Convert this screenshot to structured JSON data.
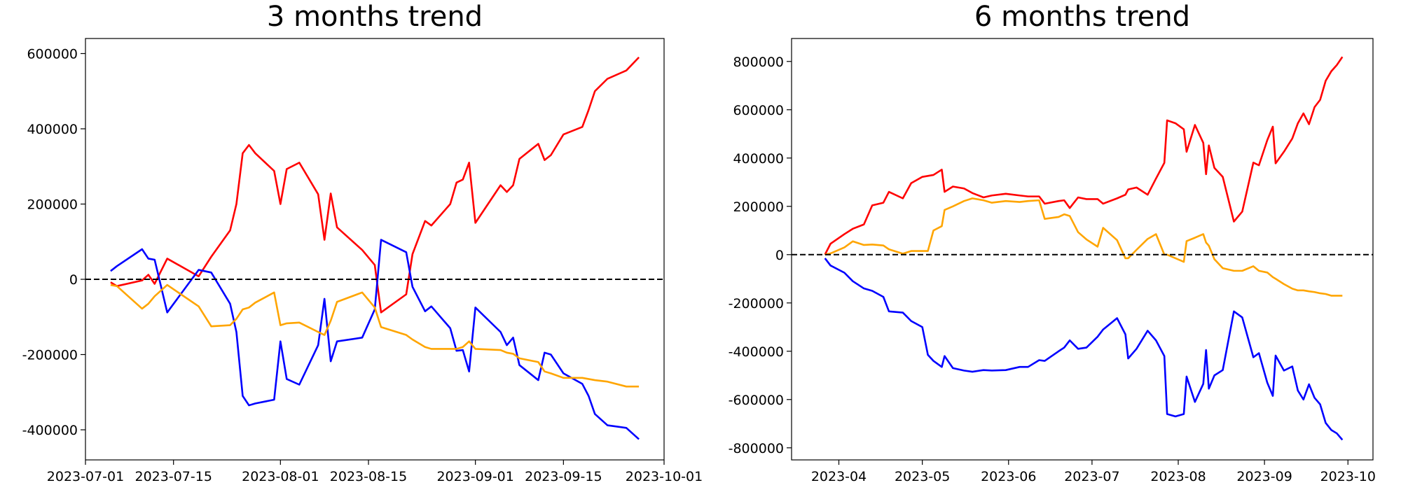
{
  "chart_data": [
    {
      "type": "line",
      "title": "3 months trend",
      "x": [
        "2023-07-05",
        "2023-07-06",
        "2023-07-10",
        "2023-07-11",
        "2023-07-12",
        "2023-07-14",
        "2023-07-19",
        "2023-07-21",
        "2023-07-24",
        "2023-07-25",
        "2023-07-26",
        "2023-07-27",
        "2023-07-28",
        "2023-07-31",
        "2023-08-01",
        "2023-08-02",
        "2023-08-04",
        "2023-08-07",
        "2023-08-08",
        "2023-08-09",
        "2023-08-10",
        "2023-08-14",
        "2023-08-16",
        "2023-08-17",
        "2023-08-21",
        "2023-08-22",
        "2023-08-24",
        "2023-08-25",
        "2023-08-28",
        "2023-08-29",
        "2023-08-30",
        "2023-08-31",
        "2023-09-01",
        "2023-09-05",
        "2023-09-06",
        "2023-09-07",
        "2023-09-08",
        "2023-09-11",
        "2023-09-12",
        "2023-09-13",
        "2023-09-15",
        "2023-09-18",
        "2023-09-19",
        "2023-09-20",
        "2023-09-22",
        "2023-09-25",
        "2023-09-27"
      ],
      "series": [
        {
          "color": "#ff0000",
          "values": [
            -8000,
            -18000,
            -3000,
            12000,
            -12000,
            55000,
            8000,
            60000,
            130000,
            200000,
            335000,
            357000,
            335000,
            288000,
            200000,
            293000,
            310000,
            226000,
            105000,
            228000,
            138000,
            78000,
            38000,
            -88000,
            -40000,
            67000,
            155000,
            143000,
            200000,
            257000,
            265000,
            310000,
            150000,
            250000,
            232000,
            250000,
            320000,
            360000,
            317000,
            330000,
            385000,
            405000,
            450000,
            500000,
            533000,
            555000,
            590000
          ]
        },
        {
          "color": "#0000ff",
          "values": [
            22000,
            35000,
            80000,
            55000,
            52000,
            -88000,
            25000,
            18000,
            -65000,
            -140000,
            -310000,
            -335000,
            -330000,
            -320000,
            -165000,
            -265000,
            -280000,
            -175000,
            -52000,
            -218000,
            -165000,
            -155000,
            -80000,
            105000,
            72000,
            -20000,
            -85000,
            -72000,
            -130000,
            -190000,
            -188000,
            -245000,
            -75000,
            -140000,
            -175000,
            -155000,
            -228000,
            -268000,
            -195000,
            -200000,
            -250000,
            -278000,
            -310000,
            -358000,
            -388000,
            -395000,
            -425000
          ]
        },
        {
          "color": "#ffa500",
          "values": [
            -15000,
            -18000,
            -78000,
            -65000,
            -45000,
            -15000,
            -72000,
            -125000,
            -122000,
            -105000,
            -80000,
            -75000,
            -62000,
            -35000,
            -122000,
            -117000,
            -115000,
            -140000,
            -148000,
            -110000,
            -60000,
            -35000,
            -75000,
            -127000,
            -148000,
            -160000,
            -180000,
            -185000,
            -185000,
            -185000,
            -180000,
            -165000,
            -185000,
            -188000,
            -195000,
            -198000,
            -210000,
            -220000,
            -245000,
            -250000,
            -262000,
            -262000,
            -265000,
            -268000,
            -272000,
            -285000,
            -285000
          ]
        }
      ],
      "xlim": [
        "2023-07-01",
        "2023-10-01"
      ],
      "xticks": [
        "2023-07-01",
        "2023-07-15",
        "2023-08-01",
        "2023-08-15",
        "2023-09-01",
        "2023-09-15",
        "2023-10-01"
      ],
      "ylim": [
        -480000,
        640000
      ],
      "yticks": [
        -400000,
        -200000,
        0,
        200000,
        400000,
        600000
      ],
      "hline": 0
    },
    {
      "type": "line",
      "title": "6 months trend",
      "x": [
        "2023-03-27",
        "2023-03-29",
        "2023-04-03",
        "2023-04-06",
        "2023-04-10",
        "2023-04-13",
        "2023-04-17",
        "2023-04-19",
        "2023-04-24",
        "2023-04-27",
        "2023-05-01",
        "2023-05-03",
        "2023-05-05",
        "2023-05-08",
        "2023-05-09",
        "2023-05-12",
        "2023-05-16",
        "2023-05-19",
        "2023-05-23",
        "2023-05-26",
        "2023-05-31",
        "2023-06-05",
        "2023-06-08",
        "2023-06-12",
        "2023-06-14",
        "2023-06-19",
        "2023-06-21",
        "2023-06-23",
        "2023-06-26",
        "2023-06-29",
        "2023-07-03",
        "2023-07-05",
        "2023-07-10",
        "2023-07-13",
        "2023-07-14",
        "2023-07-17",
        "2023-07-21",
        "2023-07-24",
        "2023-07-27",
        "2023-07-28",
        "2023-07-31",
        "2023-08-03",
        "2023-08-04",
        "2023-08-07",
        "2023-08-10",
        "2023-08-11",
        "2023-08-12",
        "2023-08-14",
        "2023-08-17",
        "2023-08-21",
        "2023-08-24",
        "2023-08-28",
        "2023-08-30",
        "2023-09-02",
        "2023-09-04",
        "2023-09-05",
        "2023-09-08",
        "2023-09-11",
        "2023-09-13",
        "2023-09-15",
        "2023-09-17",
        "2023-09-19",
        "2023-09-21",
        "2023-09-23",
        "2023-09-25",
        "2023-09-27",
        "2023-09-29"
      ],
      "series": [
        {
          "color": "#ff0000",
          "values": [
            0,
            45000,
            85000,
            107000,
            125000,
            204000,
            215000,
            260000,
            233000,
            296000,
            322000,
            326000,
            330000,
            352000,
            260000,
            282000,
            274000,
            255000,
            237000,
            245000,
            252000,
            245000,
            241000,
            241000,
            211000,
            222000,
            225000,
            193000,
            237000,
            230000,
            230000,
            211000,
            233000,
            248000,
            270000,
            278000,
            248000,
            315000,
            380000,
            556000,
            544000,
            519000,
            426000,
            537000,
            463000,
            333000,
            452000,
            359000,
            322000,
            137000,
            178000,
            381000,
            370000,
            474000,
            530000,
            378000,
            426000,
            481000,
            544000,
            585000,
            540000,
            611000,
            641000,
            720000,
            759000,
            785000,
            819000
          ]
        },
        {
          "color": "#0000ff",
          "values": [
            -15000,
            -45000,
            -75000,
            -110000,
            -140000,
            -150000,
            -175000,
            -235000,
            -240000,
            -275000,
            -300000,
            -415000,
            -440000,
            -465000,
            -420000,
            -470000,
            -480000,
            -485000,
            -478000,
            -480000,
            -478000,
            -465000,
            -465000,
            -437000,
            -440000,
            -400000,
            -385000,
            -355000,
            -390000,
            -385000,
            -340000,
            -310000,
            -263000,
            -330000,
            -430000,
            -390000,
            -315000,
            -355000,
            -420000,
            -660000,
            -670000,
            -660000,
            -505000,
            -610000,
            -535000,
            -395000,
            -555000,
            -500000,
            -478000,
            -235000,
            -260000,
            -425000,
            -408000,
            -530000,
            -585000,
            -418000,
            -480000,
            -463000,
            -563000,
            -600000,
            -537000,
            -593000,
            -620000,
            -697000,
            -726000,
            -740000,
            -767000
          ]
        },
        {
          "color": "#ffa500",
          "values": [
            0,
            5000,
            30000,
            55000,
            40000,
            42000,
            38000,
            22000,
            4000,
            15000,
            15000,
            15000,
            100000,
            118000,
            185000,
            200000,
            222000,
            233000,
            225000,
            215000,
            222000,
            218000,
            222000,
            225000,
            148000,
            156000,
            167000,
            160000,
            93000,
            63000,
            33000,
            111000,
            60000,
            -15000,
            -15000,
            20000,
            65000,
            85000,
            0,
            0,
            -15000,
            -30000,
            56000,
            70000,
            85000,
            50000,
            37000,
            -19000,
            -56000,
            -67000,
            -67000,
            -48000,
            -67000,
            -74000,
            -93000,
            -100000,
            -122000,
            -141000,
            -148000,
            -148000,
            -152000,
            -155000,
            -160000,
            -163000,
            -170000,
            -170000,
            -170000
          ]
        }
      ],
      "xlim": [
        "2023-03-15",
        "2023-10-10"
      ],
      "xticks": [
        {
          "value": "2023-04-01",
          "label": "2023-04"
        },
        {
          "value": "2023-05-01",
          "label": "2023-05"
        },
        {
          "value": "2023-06-01",
          "label": "2023-06"
        },
        {
          "value": "2023-07-01",
          "label": "2023-07"
        },
        {
          "value": "2023-08-01",
          "label": "2023-08"
        },
        {
          "value": "2023-09-01",
          "label": "2023-09"
        },
        {
          "value": "2023-10-01",
          "label": "2023-10"
        }
      ],
      "ylim": [
        -850000,
        895000
      ],
      "yticks": [
        -800000,
        -600000,
        -400000,
        -200000,
        0,
        200000,
        400000,
        600000,
        800000
      ],
      "hline": 0
    }
  ]
}
